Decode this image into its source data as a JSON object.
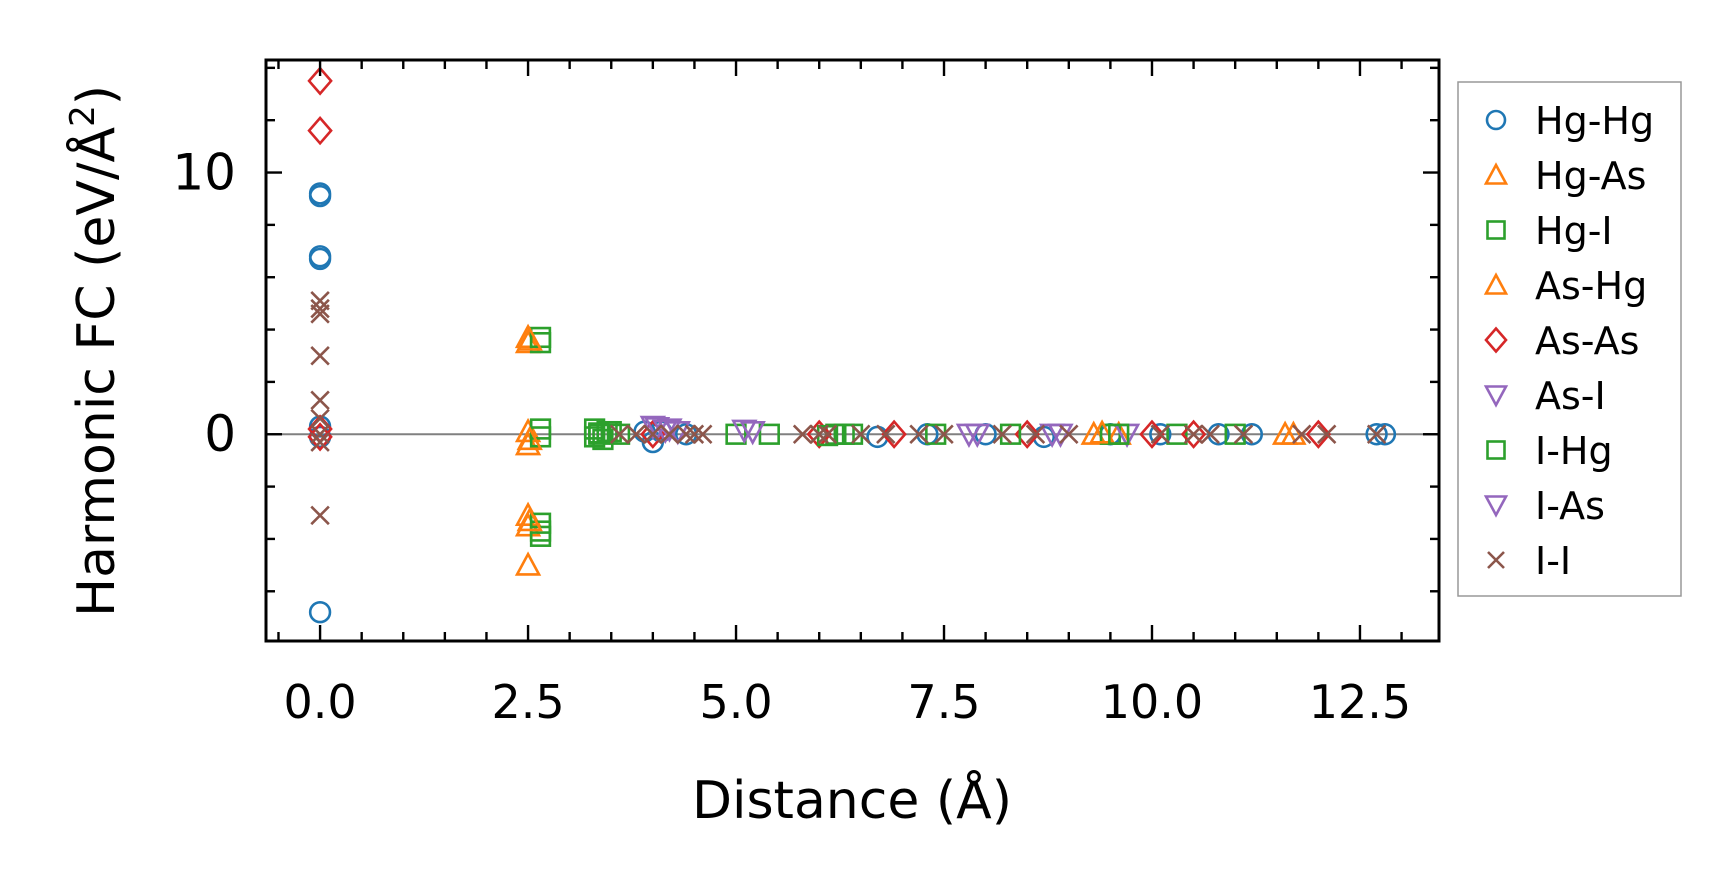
{
  "chart_data": {
    "type": "scatter",
    "title": "",
    "xlabel": "Distance (Å)",
    "ylabel": "Harmonic FC (eV/Å²)",
    "ylabel_main": "Harmonic FC (eV/Å",
    "ylabel_sup": "2",
    "ylabel_close": ")",
    "xlim": [
      -0.65,
      13.45
    ],
    "ylim": [
      -7.9,
      14.3
    ],
    "xticks": [
      0.0,
      2.5,
      5.0,
      7.5,
      10.0,
      12.5
    ],
    "xtick_labels": [
      "0.0",
      "2.5",
      "5.0",
      "7.5",
      "10.0",
      "12.5"
    ],
    "yticks": [
      0,
      10
    ],
    "ytick_labels": [
      "0",
      "10"
    ],
    "zero_line": true,
    "legend_position": "right",
    "series": [
      {
        "name": "Hg-Hg",
        "marker": "circle",
        "color": "#1f77b4",
        "points": [
          [
            0,
            9.2
          ],
          [
            0,
            9.1
          ],
          [
            0,
            6.8
          ],
          [
            0,
            6.7
          ],
          [
            0,
            0.3
          ],
          [
            0,
            -0.1
          ],
          [
            0,
            -6.8
          ],
          [
            3.9,
            0.1
          ],
          [
            4.0,
            -0.3
          ],
          [
            4.1,
            0.1
          ],
          [
            4.4,
            0
          ],
          [
            6.7,
            -0.1
          ],
          [
            7.3,
            0
          ],
          [
            8.0,
            0
          ],
          [
            8.7,
            -0.1
          ],
          [
            9.5,
            0
          ],
          [
            10.1,
            0
          ],
          [
            10.8,
            0
          ],
          [
            11.2,
            0
          ],
          [
            12.7,
            0
          ],
          [
            12.8,
            0
          ]
        ]
      },
      {
        "name": "Hg-As",
        "marker": "triangle-up",
        "color": "#ff7f0e",
        "points": [
          [
            2.5,
            3.7
          ],
          [
            2.5,
            3.5
          ],
          [
            2.5,
            0.1
          ],
          [
            2.5,
            -0.4
          ],
          [
            2.5,
            -3.1
          ],
          [
            2.5,
            -3.5
          ],
          [
            2.5,
            -5.0
          ],
          [
            9.3,
            0
          ],
          [
            9.6,
            0
          ],
          [
            11.6,
            0
          ]
        ]
      },
      {
        "name": "Hg-I",
        "marker": "square",
        "color": "#2ca02c",
        "points": [
          [
            2.65,
            3.7
          ],
          [
            2.65,
            3.5
          ],
          [
            2.65,
            0.2
          ],
          [
            2.65,
            -0.1
          ],
          [
            2.65,
            -3.4
          ],
          [
            2.65,
            -3.7
          ],
          [
            2.65,
            -3.9
          ],
          [
            3.3,
            0.2
          ],
          [
            3.3,
            -0.1
          ],
          [
            3.35,
            0.05
          ],
          [
            3.4,
            -0.2
          ],
          [
            3.45,
            0.1
          ],
          [
            3.6,
            0
          ],
          [
            5.0,
            0
          ],
          [
            5.4,
            0
          ],
          [
            6.2,
            0
          ],
          [
            6.4,
            0
          ],
          [
            7.4,
            0
          ],
          [
            9.5,
            0
          ],
          [
            10.3,
            0
          ],
          [
            11.0,
            0
          ]
        ]
      },
      {
        "name": "As-Hg",
        "marker": "triangle-up",
        "color": "#ff7f0e",
        "points": [
          [
            2.52,
            3.6
          ],
          [
            2.52,
            -0.2
          ],
          [
            2.52,
            -3.3
          ],
          [
            9.4,
            0.05
          ],
          [
            11.7,
            0
          ]
        ]
      },
      {
        "name": "As-As",
        "marker": "diamond",
        "color": "#d62728",
        "points": [
          [
            0,
            13.5
          ],
          [
            0,
            11.6
          ],
          [
            0,
            0.2
          ],
          [
            0,
            -0.1
          ],
          [
            4.0,
            0
          ],
          [
            6.0,
            0
          ],
          [
            6.9,
            0
          ],
          [
            8.5,
            0
          ],
          [
            10.0,
            0
          ],
          [
            10.5,
            0
          ],
          [
            12.0,
            0
          ]
        ]
      },
      {
        "name": "As-I",
        "marker": "triangle-down",
        "color": "#9467bd",
        "points": [
          [
            4.0,
            0.3
          ],
          [
            4.2,
            0.2
          ],
          [
            4.3,
            0.1
          ],
          [
            5.2,
            0.1
          ],
          [
            7.8,
            0
          ],
          [
            8.9,
            0
          ],
          [
            9.7,
            0
          ]
        ]
      },
      {
        "name": "I-Hg",
        "marker": "square",
        "color": "#2ca02c",
        "points": [
          [
            3.35,
            0
          ],
          [
            3.5,
            0.1
          ],
          [
            6.1,
            -0.05
          ],
          [
            6.3,
            0
          ],
          [
            8.3,
            0
          ],
          [
            9.6,
            0
          ]
        ]
      },
      {
        "name": "I-As",
        "marker": "triangle-down",
        "color": "#9467bd",
        "points": [
          [
            4.05,
            0.25
          ],
          [
            4.15,
            0.15
          ],
          [
            5.1,
            0.15
          ],
          [
            7.9,
            0
          ],
          [
            8.8,
            0
          ]
        ]
      },
      {
        "name": "I-I",
        "marker": "x",
        "color": "#8c564b",
        "points": [
          [
            0,
            5.1
          ],
          [
            0,
            4.8
          ],
          [
            0,
            4.6
          ],
          [
            0,
            3.0
          ],
          [
            0,
            1.3
          ],
          [
            0,
            0.6
          ],
          [
            0,
            0
          ],
          [
            0,
            -0.3
          ],
          [
            0,
            -3.1
          ],
          [
            3.6,
            0
          ],
          [
            3.8,
            0
          ],
          [
            4.0,
            0
          ],
          [
            4.2,
            0
          ],
          [
            4.4,
            0
          ],
          [
            4.5,
            0
          ],
          [
            4.6,
            0
          ],
          [
            5.8,
            0
          ],
          [
            6.0,
            0
          ],
          [
            6.1,
            0
          ],
          [
            6.5,
            0
          ],
          [
            6.8,
            0
          ],
          [
            7.2,
            0
          ],
          [
            7.5,
            0
          ],
          [
            8.2,
            0
          ],
          [
            8.6,
            0
          ],
          [
            9.0,
            0
          ],
          [
            10.1,
            0
          ],
          [
            10.5,
            0
          ],
          [
            10.7,
            0
          ],
          [
            11.1,
            0
          ],
          [
            11.8,
            0
          ],
          [
            12.1,
            0
          ],
          [
            12.7,
            0
          ]
        ]
      }
    ]
  }
}
